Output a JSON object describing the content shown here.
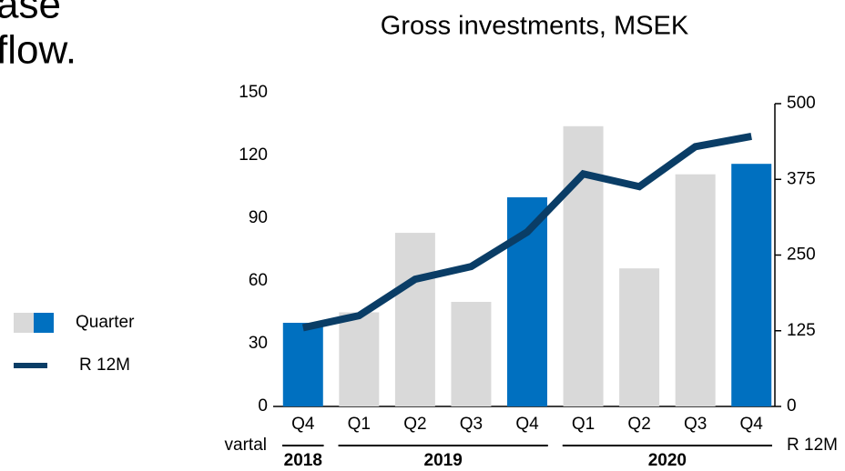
{
  "slide_text": [
    "ase",
    "flow."
  ],
  "chart_data": {
    "type": "bar_line",
    "title": "Gross investments, MSEK",
    "categories": [
      "Q4",
      "Q1",
      "Q2",
      "Q3",
      "Q4",
      "Q1",
      "Q2",
      "Q3",
      "Q4"
    ],
    "groups": [
      {
        "label": "2018",
        "count": 1
      },
      {
        "label": "2019",
        "count": 4
      },
      {
        "label": "2020",
        "count": 4
      }
    ],
    "x_label_left": "vartal",
    "x_label_right": "R 12M",
    "series": [
      {
        "name": "Quarter",
        "type": "bar",
        "colors": [
          "#0070c0",
          "#d9d9d9",
          "#d9d9d9",
          "#d9d9d9",
          "#0070c0",
          "#d9d9d9",
          "#d9d9d9",
          "#d9d9d9",
          "#0070c0"
        ],
        "values": [
          40,
          45,
          83,
          50,
          100,
          134,
          66,
          111,
          116
        ]
      },
      {
        "name": "R 12M",
        "type": "line",
        "axis": "y2",
        "color": "#0a3d66",
        "values": [
          130,
          150,
          210,
          231,
          288,
          384,
          363,
          429,
          446
        ]
      }
    ],
    "ylim": [
      0,
      150
    ],
    "yticks": [
      0,
      30,
      60,
      90,
      120,
      150
    ],
    "y2lim": [
      0,
      500
    ],
    "y2ticks": [
      0,
      125,
      250,
      375,
      500
    ],
    "legend": "left"
  }
}
